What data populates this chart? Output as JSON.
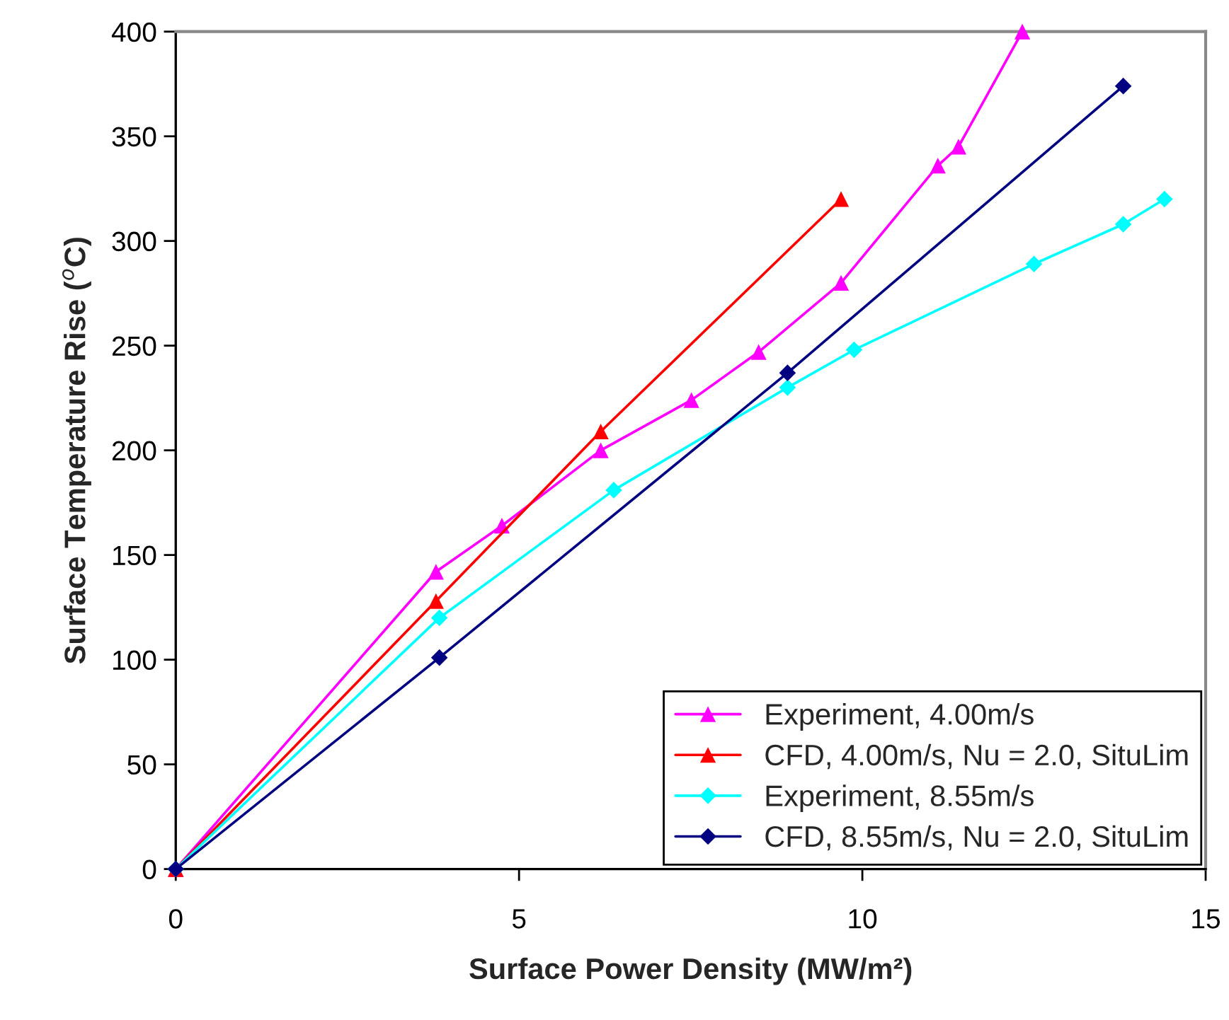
{
  "chart_data": {
    "type": "line",
    "xlabel": "Surface Power Density (MW/m²)",
    "ylabel": "Surface Temperature Rise ($^{o}$C)",
    "xlim": [
      0,
      15
    ],
    "xticks": [
      0,
      5,
      10,
      15
    ],
    "ylim": [
      0,
      400
    ],
    "yticks": [
      0,
      50,
      100,
      150,
      200,
      250,
      300,
      350,
      400
    ],
    "grid": false,
    "legend": "bottom right",
    "series": [
      {
        "name": "Experiment, 4.00m/s",
        "color": "#ff00ff",
        "marker": "triangle",
        "x": [
          0,
          3.79,
          4.75,
          6.19,
          7.51,
          8.49,
          9.69,
          11.1,
          11.4,
          12.33
        ],
        "values": [
          0,
          142,
          164,
          200,
          224,
          247,
          280,
          336,
          345,
          400
        ]
      },
      {
        "name": "CFD, 4.00m/s, Nu = 2.0, SituLim",
        "color": "#ff0000",
        "marker": "triangle",
        "x": [
          0,
          3.79,
          6.19,
          9.69
        ],
        "values": [
          0,
          128,
          209,
          320
        ]
      },
      {
        "name": "Experiment, 8.55m/s",
        "color": "#00ffff",
        "marker": "diamond",
        "x": [
          0,
          3.84,
          6.38,
          8.91,
          9.88,
          12.5,
          13.8,
          14.4
        ],
        "values": [
          0,
          120,
          181,
          230,
          248,
          289,
          308,
          320
        ]
      },
      {
        "name": "CFD, 8.55m/s, Nu = 2.0, SituLim",
        "color": "#000080",
        "marker": "diamond",
        "x": [
          0,
          3.84,
          8.91,
          13.8
        ],
        "values": [
          0,
          101,
          237,
          374
        ]
      }
    ]
  }
}
